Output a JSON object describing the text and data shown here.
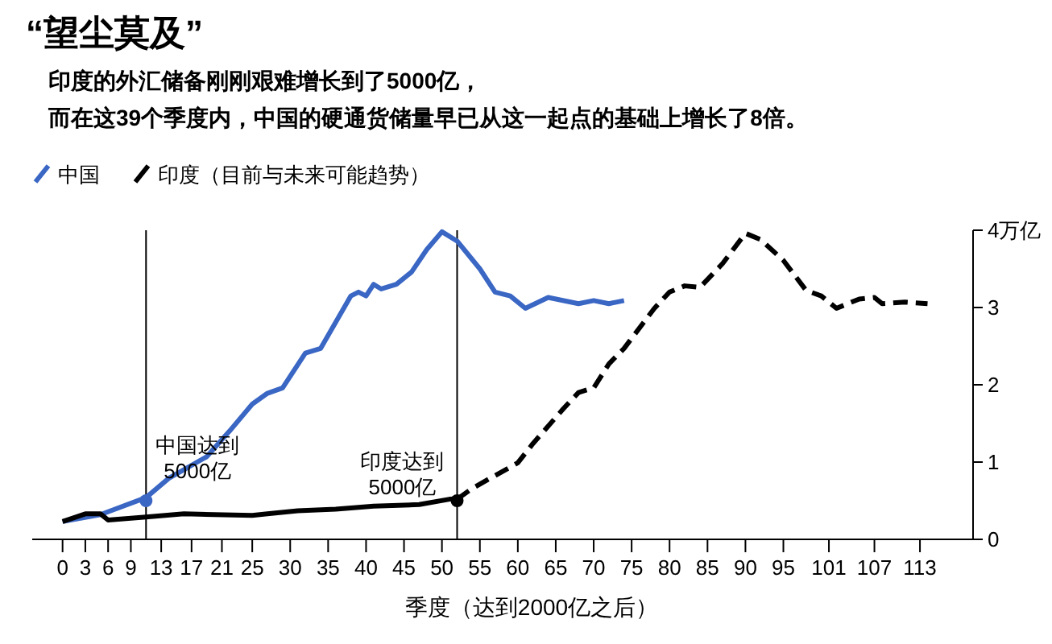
{
  "chart_data": {
    "type": "line",
    "title": "“望尘莫及”",
    "subtitle": "印度的外汇储备刚刚艰难增长到了5000亿，而在这39个季度内，中国的硬通货储量早已从这一起点的基础上增长了8倍。",
    "xlabel": "季度（达到2000亿之后）",
    "xlim": [
      -4,
      120
    ],
    "xticks": [
      0,
      3,
      6,
      9,
      13,
      17,
      21,
      25,
      30,
      35,
      40,
      45,
      50,
      55,
      60,
      65,
      70,
      75,
      80,
      85,
      90,
      95,
      101,
      107,
      113
    ],
    "ylim": [
      0,
      4
    ],
    "yticks": [
      0,
      1,
      2,
      3,
      {
        "value": 4,
        "label": "4万亿"
      }
    ],
    "grid": false,
    "legend": "top left",
    "marker": "none",
    "series": [
      {
        "name": "中国",
        "color": "#3a66c4",
        "line_style": "solid",
        "x": [
          0,
          5,
          11,
          14,
          19,
          22,
          25,
          27,
          29,
          32,
          34,
          38,
          39,
          40,
          41,
          42,
          44,
          46,
          48,
          50,
          52,
          55,
          57,
          59,
          61,
          64,
          68,
          70,
          72,
          74
        ],
        "values": [
          0.23,
          0.32,
          0.54,
          0.79,
          1.07,
          1.4,
          1.75,
          1.89,
          1.96,
          2.41,
          2.47,
          3.15,
          3.2,
          3.15,
          3.3,
          3.24,
          3.3,
          3.46,
          3.75,
          3.98,
          3.86,
          3.5,
          3.2,
          3.15,
          2.99,
          3.13,
          3.05,
          3.09,
          3.05,
          3.09
        ]
      },
      {
        "name": "印度（目前与未来可能趋势）",
        "color": "#000000",
        "line_style": "solid",
        "x": [
          0,
          3,
          5,
          6,
          11,
          16,
          25,
          27,
          31,
          36,
          41,
          47,
          51,
          52
        ],
        "values": [
          0.23,
          0.33,
          0.33,
          0.25,
          0.29,
          0.33,
          0.31,
          0.33,
          0.37,
          0.39,
          0.43,
          0.45,
          0.52,
          0.52
        ]
      },
      {
        "color": "#000000",
        "line_style": "dashed",
        "x": [
          52,
          54,
          60,
          62,
          66,
          68,
          70,
          72,
          74,
          78,
          80,
          82,
          84,
          87,
          90,
          92,
          95,
          98,
          100,
          102,
          105,
          107,
          108,
          111,
          114
        ],
        "values": [
          0.52,
          0.66,
          0.99,
          1.24,
          1.69,
          1.9,
          1.96,
          2.27,
          2.47,
          2.99,
          3.2,
          3.28,
          3.26,
          3.57,
          3.96,
          3.88,
          3.61,
          3.22,
          3.15,
          2.99,
          3.11,
          3.13,
          3.05,
          3.07,
          3.05
        ]
      }
    ],
    "ref_lines": [
      {
        "axis": "x",
        "value": 11,
        "color": "#000000"
      },
      {
        "axis": "x",
        "value": 52,
        "color": "#000000"
      }
    ],
    "annotations": [
      {
        "text": "中国达到\n5000亿",
        "x": 11,
        "y": 0.5
      },
      {
        "text": "印度达到\n5000亿",
        "x": 52,
        "y": 0.5
      }
    ]
  }
}
